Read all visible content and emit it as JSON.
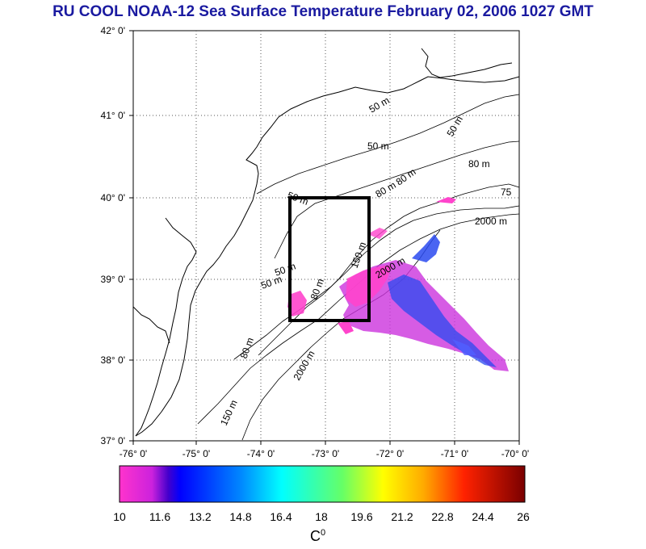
{
  "title": "RU COOL  NOAA-12 Sea Surface Temperature February 02, 2006 1027 GMT",
  "axes": {
    "y_ticks": [
      "42° 0'",
      "41° 0'",
      "40° 0'",
      "39° 0'",
      "38° 0'",
      "37° 0'"
    ],
    "x_ticks": [
      "-76° 0'",
      "-75° 0'",
      "-74° 0'",
      "-73° 0'",
      "-72° 0'",
      "-71° 0'",
      "-70° 0'"
    ]
  },
  "contour_labels": [
    "50 m",
    "50 m",
    "50 m",
    "50 m",
    "80 m",
    "80 m",
    "80 m",
    "80 m",
    "150 m",
    "150 m",
    "2000 m",
    "2000 m",
    "2000 m",
    "50 m",
    "50 m",
    "80 m",
    "75"
  ],
  "colorbar": {
    "labels": [
      "10",
      "11.6",
      "13.2",
      "14.8",
      "16.4",
      "18",
      "19.6",
      "21.2",
      "22.8",
      "24.4",
      "26"
    ],
    "units": "C",
    "units_sup": "0",
    "colors": [
      "#ff33cc",
      "#7a1fe0",
      "#0000ff",
      "#00aaff",
      "#00ffff",
      "#66ff66",
      "#ffff00",
      "#ff9900",
      "#ff0000",
      "#8b0000"
    ]
  }
}
